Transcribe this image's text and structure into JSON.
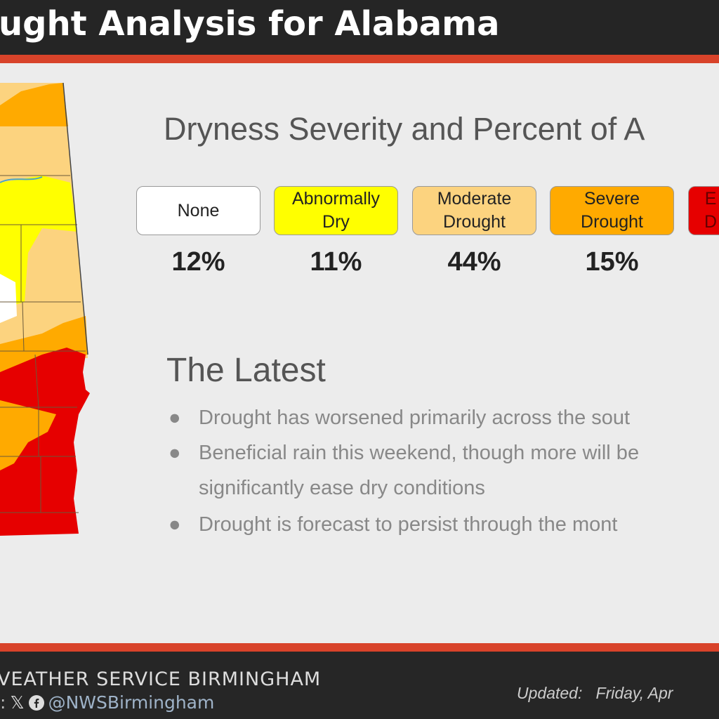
{
  "header": {
    "title": "ught Analysis for Alabama"
  },
  "main": {
    "subtitle": "Dryness Severity and Percent of A",
    "categories": [
      {
        "label_line1": "None",
        "label_line2": "",
        "percent": "12%",
        "color": "#ffffff"
      },
      {
        "label_line1": "Abnormally",
        "label_line2": "Dry",
        "percent": "11%",
        "color": "#ffff00"
      },
      {
        "label_line1": "Moderate",
        "label_line2": "Drought",
        "percent": "44%",
        "color": "#fcd37f"
      },
      {
        "label_line1": "Severe",
        "label_line2": "Drought",
        "percent": "15%",
        "color": "#ffaa00"
      },
      {
        "label_line1": "E",
        "label_line2": "D",
        "percent": "",
        "color": "#e60000"
      }
    ],
    "latest_heading": "The Latest",
    "bullets": [
      "Drought has worsened primarily across the sout",
      "Beneficial rain this weekend, though more will be",
      "significantly ease dry conditions",
      "Drought is forecast to persist through the mont"
    ]
  },
  "footer": {
    "org": "VEATHER SERVICE BIRMINGHAM",
    "social_prefix": ":",
    "handle": "@NWSBirmingham",
    "updated_label": "Updated:",
    "updated_value": "Friday, Apr"
  },
  "icons": [
    "x-logo-icon",
    "facebook-icon"
  ]
}
